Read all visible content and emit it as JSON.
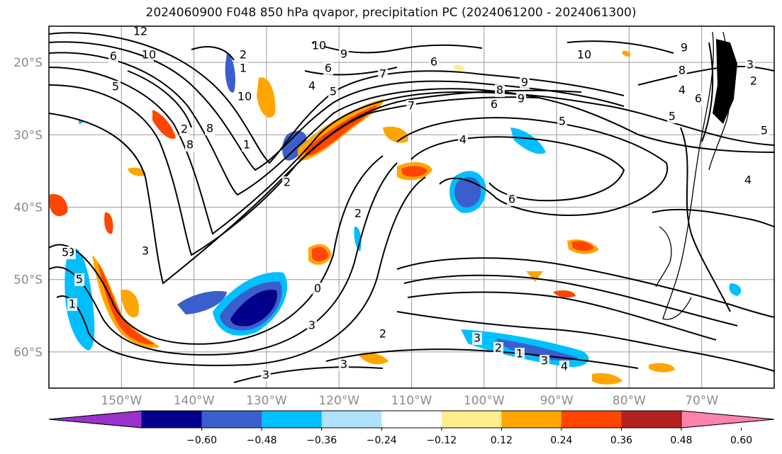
{
  "title": "2024060900 F048 850 hPa qvapor, precipitation PC (2024061200 - 2024061300)",
  "map": {
    "lat_ticks": [
      {
        "lat": -20,
        "label": "20°S"
      },
      {
        "lat": -30,
        "label": "30°S"
      },
      {
        "lat": -40,
        "label": "40°S"
      },
      {
        "lat": -50,
        "label": "50°S"
      },
      {
        "lat": -60,
        "label": "60°S"
      }
    ],
    "lon_ticks": [
      {
        "lon": -150,
        "label": "150°W"
      },
      {
        "lon": -140,
        "label": "140°W"
      },
      {
        "lon": -130,
        "label": "130°W"
      },
      {
        "lon": -120,
        "label": "120°W"
      },
      {
        "lon": -110,
        "label": "110°W"
      },
      {
        "lon": -100,
        "label": "100°W"
      },
      {
        "lon": -90,
        "label": "90°W"
      },
      {
        "lon": -80,
        "label": "80°W"
      },
      {
        "lon": -70,
        "label": "70°W"
      }
    ],
    "extent": {
      "lon_min": -160,
      "lon_max": -60,
      "lat_min": -65,
      "lat_max": -15
    },
    "grid": true,
    "contour_labels": [
      "12",
      "6",
      "10",
      "5",
      "8",
      "2",
      "1",
      "10",
      "10",
      "9",
      "6",
      "4",
      "5",
      "7",
      "6",
      "9",
      "8",
      "9",
      "6",
      "5",
      "7",
      "2",
      "8",
      "4",
      "10",
      "9",
      "8",
      "4",
      "6",
      "5",
      "3",
      "2",
      "5",
      "4",
      "6",
      "9",
      "5",
      "1",
      "3",
      "5",
      "1",
      "2",
      "2",
      "0",
      "3",
      "2",
      "3",
      "3",
      "3",
      "2",
      "1",
      "3",
      "4"
    ]
  },
  "colorbar": {
    "colors": [
      "#9a32cd",
      "#00008b",
      "#3a5fcd",
      "#00bfff",
      "#b0e2ff",
      "#ffffff",
      "#ffec8b",
      "#ffa500",
      "#ff4500",
      "#b22222",
      "#ff82ab"
    ],
    "tick_labels": [
      "−0.60",
      "−0.48",
      "−0.36",
      "−0.24",
      "−0.12",
      "0.12",
      "0.24",
      "0.36",
      "0.48",
      "0.60"
    ]
  }
}
